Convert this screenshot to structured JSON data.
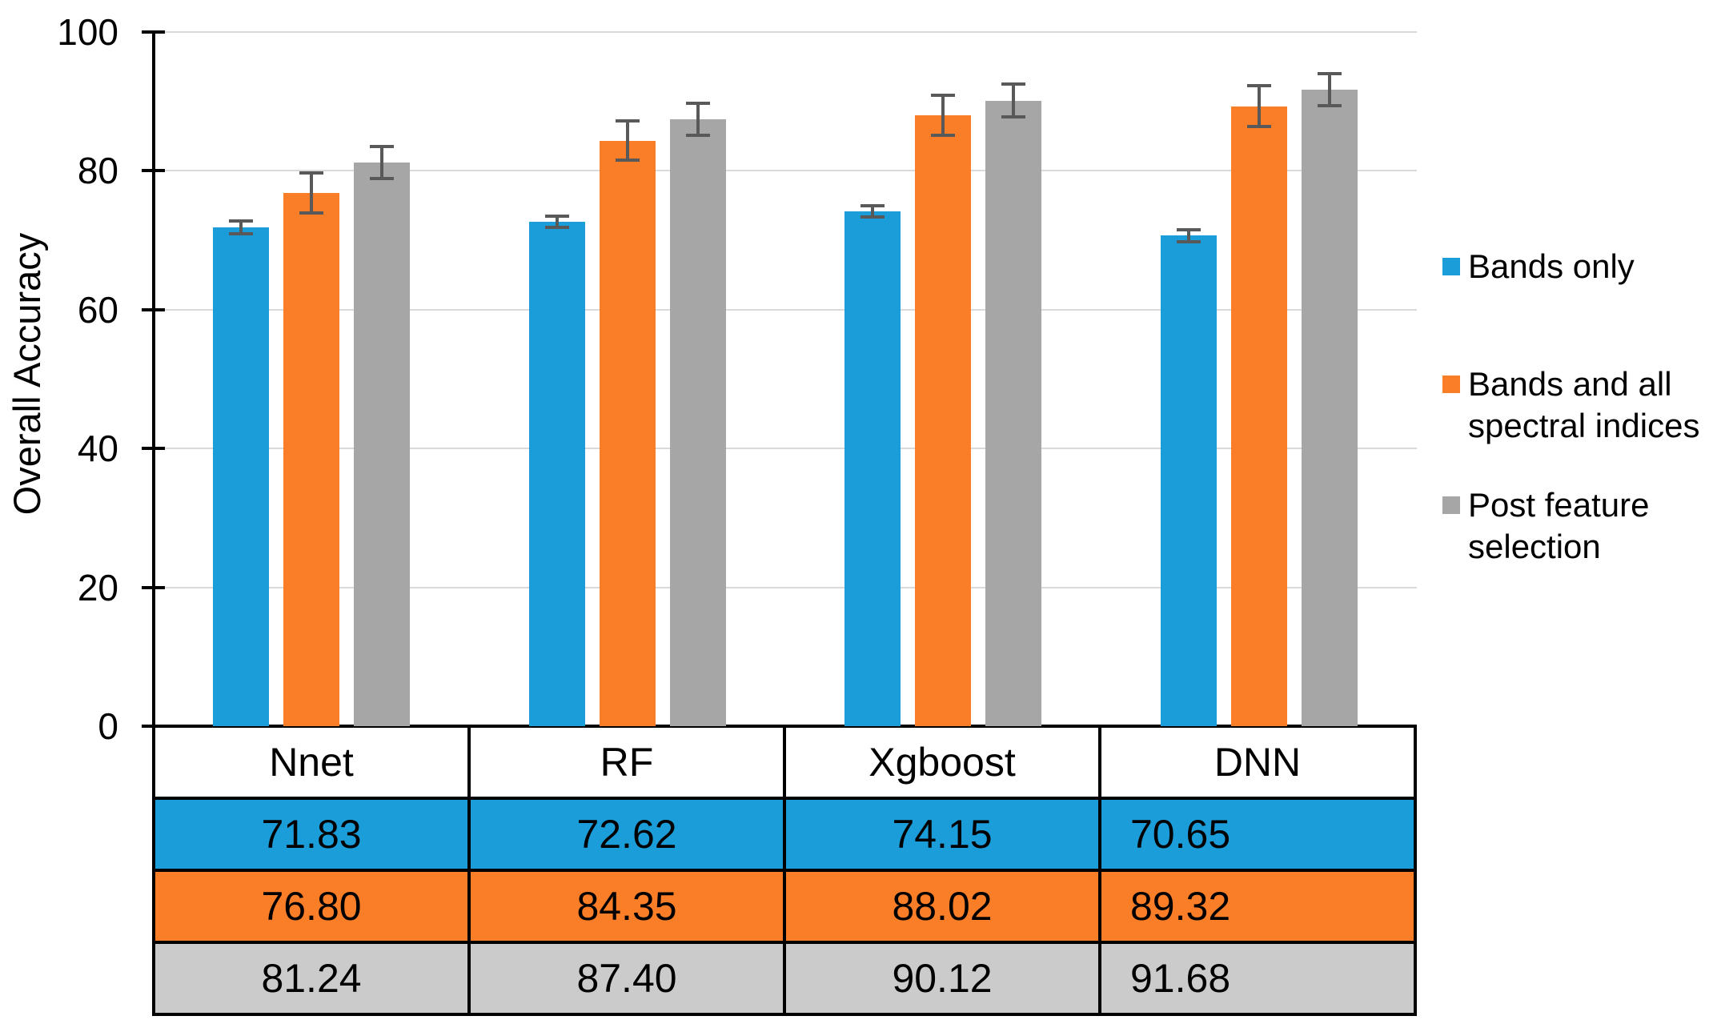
{
  "chart_data": {
    "type": "bar",
    "title": "",
    "xlabel": "",
    "ylabel": "Overall Accuracy",
    "ylim": [
      0,
      100
    ],
    "yticks": [
      0,
      20,
      40,
      60,
      80,
      100
    ],
    "grid": true,
    "legend_position": "right",
    "categories": [
      "Nnet",
      "RF",
      "Xgboost",
      "DNN"
    ],
    "series": [
      {
        "name": "Bands only",
        "color": "#1B9DD9",
        "values": [
          71.83,
          72.62,
          74.15,
          70.65
        ],
        "errors": [
          0.9,
          0.8,
          0.8,
          0.9
        ]
      },
      {
        "name": "Bands and all spectral indices",
        "color": "#F97E27",
        "values": [
          76.8,
          84.35,
          88.02,
          89.32
        ],
        "errors": [
          2.9,
          2.8,
          2.9,
          2.9
        ]
      },
      {
        "name": "Post feature selection",
        "color": "#A6A6A6",
        "values": [
          81.24,
          87.4,
          90.12,
          91.68
        ],
        "errors": [
          2.3,
          2.3,
          2.4,
          2.3
        ]
      }
    ],
    "legend": {
      "entries": [
        {
          "lines": [
            "Bands only"
          ],
          "color": "#1B9DD9"
        },
        {
          "lines": [
            "Bands and all",
            "spectral indices"
          ],
          "color": "#F97E27"
        },
        {
          "lines": [
            "Post feature",
            "selection"
          ],
          "color": "#A6A6A6"
        }
      ]
    },
    "value_table": {
      "header": [
        "Nnet",
        "RF",
        "Xgboost",
        "DNN"
      ],
      "rows": [
        {
          "series": "Bands only",
          "color": "#1B9DD9",
          "cells": [
            "71.83",
            "72.62",
            "74.15",
            "70.65"
          ]
        },
        {
          "series": "Bands and all spectral indices",
          "color": "#F97E27",
          "cells": [
            "76.80",
            "84.35",
            "88.02",
            "89.32"
          ]
        },
        {
          "series": "Post feature selection",
          "color": "#CBCBCB",
          "cells": [
            "81.24",
            "87.40",
            "90.12",
            "91.68"
          ]
        }
      ]
    },
    "colors": {
      "grid": "#D9D9D9",
      "axis": "#000000",
      "error_bar": "#595959",
      "background": "#FFFFFF"
    }
  }
}
